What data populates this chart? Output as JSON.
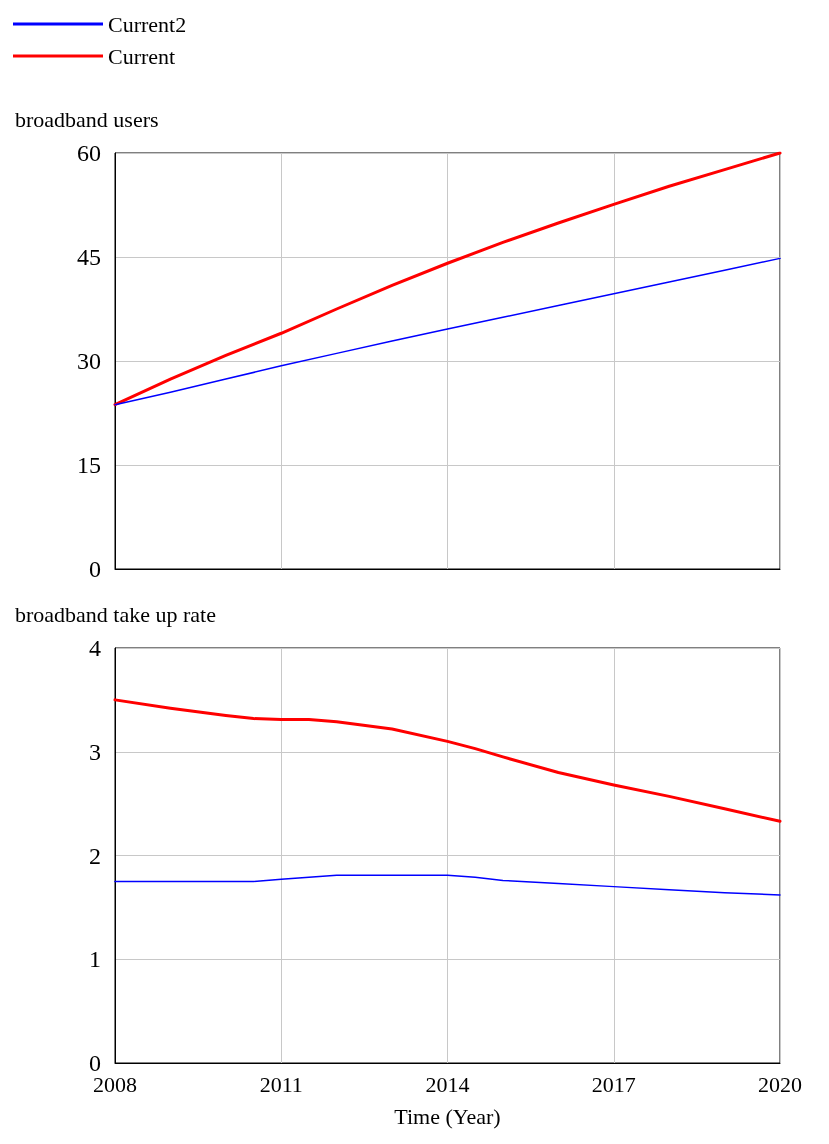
{
  "chart_data": [
    {
      "type": "line",
      "ylabel": "broadband users",
      "x": [
        2008,
        2009,
        2010,
        2011,
        2012,
        2013,
        2014,
        2015,
        2016,
        2017,
        2018,
        2019,
        2020
      ],
      "xlim": [
        2008,
        2020
      ],
      "xticks": [
        2008,
        2011,
        2014,
        2017,
        2020
      ],
      "ylim": [
        0,
        60
      ],
      "yticks": [
        0,
        15,
        30,
        45,
        60
      ],
      "grid": true,
      "legend": "top left",
      "tick_labels": "y",
      "marker": "none",
      "line_style": "solid",
      "series": [
        {
          "name": "Current2",
          "color": "#0000ff",
          "values": [
            23.7,
            25.5,
            27.4,
            29.3,
            31.1,
            32.9,
            34.6,
            36.3,
            38.0,
            39.7,
            41.4,
            43.1,
            44.8
          ]
        },
        {
          "name": "Current",
          "color": "#ff0000",
          "values": [
            23.7,
            27.4,
            30.8,
            34.0,
            37.5,
            40.9,
            44.1,
            47.1,
            49.9,
            52.6,
            55.2,
            57.6,
            60.0
          ]
        }
      ]
    },
    {
      "type": "line",
      "ylabel": "broadband take up rate",
      "xlabel": "Time (Year)",
      "x": [
        2008,
        2009,
        2010,
        2010.5,
        2011,
        2011.5,
        2012,
        2013,
        2014,
        2014.5,
        2015,
        2016,
        2017,
        2018,
        2019,
        2020
      ],
      "xlim": [
        2008,
        2020
      ],
      "xticks": [
        2008,
        2011,
        2014,
        2017,
        2020
      ],
      "ylim": [
        0,
        4
      ],
      "yticks": [
        0,
        1,
        2,
        3,
        4
      ],
      "grid": true,
      "marker": "none",
      "line_style": "solid",
      "series": [
        {
          "color": "#0000ff",
          "values": [
            1.75,
            1.75,
            1.75,
            1.75,
            1.77,
            1.79,
            1.81,
            1.81,
            1.81,
            1.79,
            1.76,
            1.73,
            1.7,
            1.67,
            1.64,
            1.62
          ]
        },
        {
          "color": "#ff0000",
          "values": [
            3.5,
            3.42,
            3.35,
            3.32,
            3.31,
            3.31,
            3.29,
            3.22,
            3.1,
            3.03,
            2.95,
            2.8,
            2.68,
            2.57,
            2.45,
            2.33
          ]
        }
      ]
    }
  ]
}
